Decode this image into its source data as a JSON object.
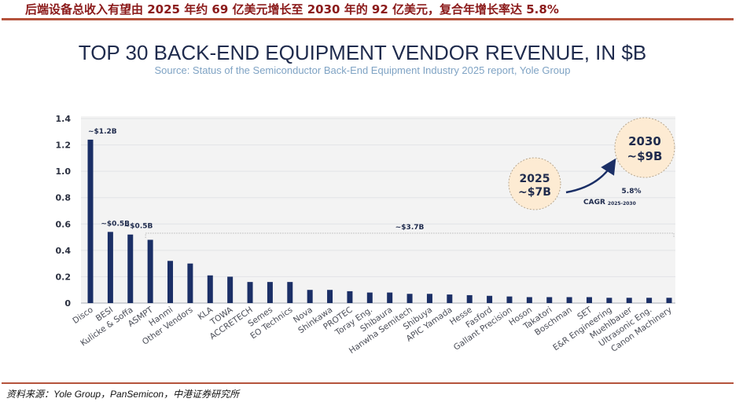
{
  "headline": "后端设备总收入有望由 2025 年约 69 亿美元增长至 2030 年的 92 亿美元，复合年增长率达 5.8%",
  "footer": "资料来源：Yole Group，PanSemicon，中港证券研究所",
  "colors": {
    "bar": "#1b2f66",
    "accent_line": "#b5533c",
    "bubble_fill": "#fdebd3",
    "plot_bg": "#f3f3f3",
    "title": "#1f2b4d",
    "subtitle": "#7fa3c4"
  },
  "chart_data": {
    "type": "bar",
    "title": "TOP 30 BACK-END EQUIPMENT VENDOR REVENUE, IN $B",
    "subtitle": "Source: Status of the Semiconductor Back-End Equipment Industry 2025 report, Yole Group",
    "xlabel": "",
    "ylabel": "",
    "ylim": [
      0,
      1.4
    ],
    "yticks": [
      "0",
      "0.2",
      "0.4",
      "0.6",
      "0.8",
      "1.0",
      "1.2",
      "1.4"
    ],
    "ytick_values": [
      0,
      0.2,
      0.4,
      0.6,
      0.8,
      1.0,
      1.2,
      1.4
    ],
    "grid": true,
    "categories": [
      "Disco",
      "BESI",
      "Kulicke & Soffa",
      "ASMPT",
      "Hanmi",
      "Other Vendors",
      "KLA",
      "TOWA",
      "ACCRETECH",
      "Semes",
      "EO Technics",
      "Nova",
      "Shinkawa",
      "PROTEC",
      "Toray Eng.",
      "Shibaura",
      "Hanwha Semitech",
      "Shibuya",
      "APIC Yamada",
      "Hesse",
      "Fasford",
      "Gallant Precision",
      "Hoson",
      "Takatori",
      "Boschman",
      "SET",
      "E&R Engineering",
      "Muehlbauer",
      "Ultrasonic Eng.",
      "Canon Machinery"
    ],
    "values": [
      1.24,
      0.54,
      0.52,
      0.48,
      0.32,
      0.3,
      0.21,
      0.2,
      0.16,
      0.16,
      0.16,
      0.1,
      0.1,
      0.09,
      0.08,
      0.08,
      0.07,
      0.07,
      0.065,
      0.06,
      0.055,
      0.05,
      0.045,
      0.045,
      0.045,
      0.045,
      0.04,
      0.04,
      0.04,
      0.04
    ],
    "annotations": {
      "data_labels": [
        {
          "category": "Disco",
          "text": "~$1.2B"
        },
        {
          "category": "BESI",
          "text": "~$0.5B"
        },
        {
          "category": "Kulicke & Soffa",
          "text": "~$0.5B"
        }
      ],
      "bracket": {
        "from": "ASMPT",
        "to": "Canon Machinery",
        "text": "~$3.7B"
      },
      "bubble_2025": {
        "year": "2025",
        "value": "~$7B"
      },
      "bubble_2030": {
        "year": "2030",
        "value": "~$9B"
      },
      "cagr": {
        "rate": "5.8%",
        "label": "CAGR",
        "period": "2025-2030"
      }
    }
  }
}
